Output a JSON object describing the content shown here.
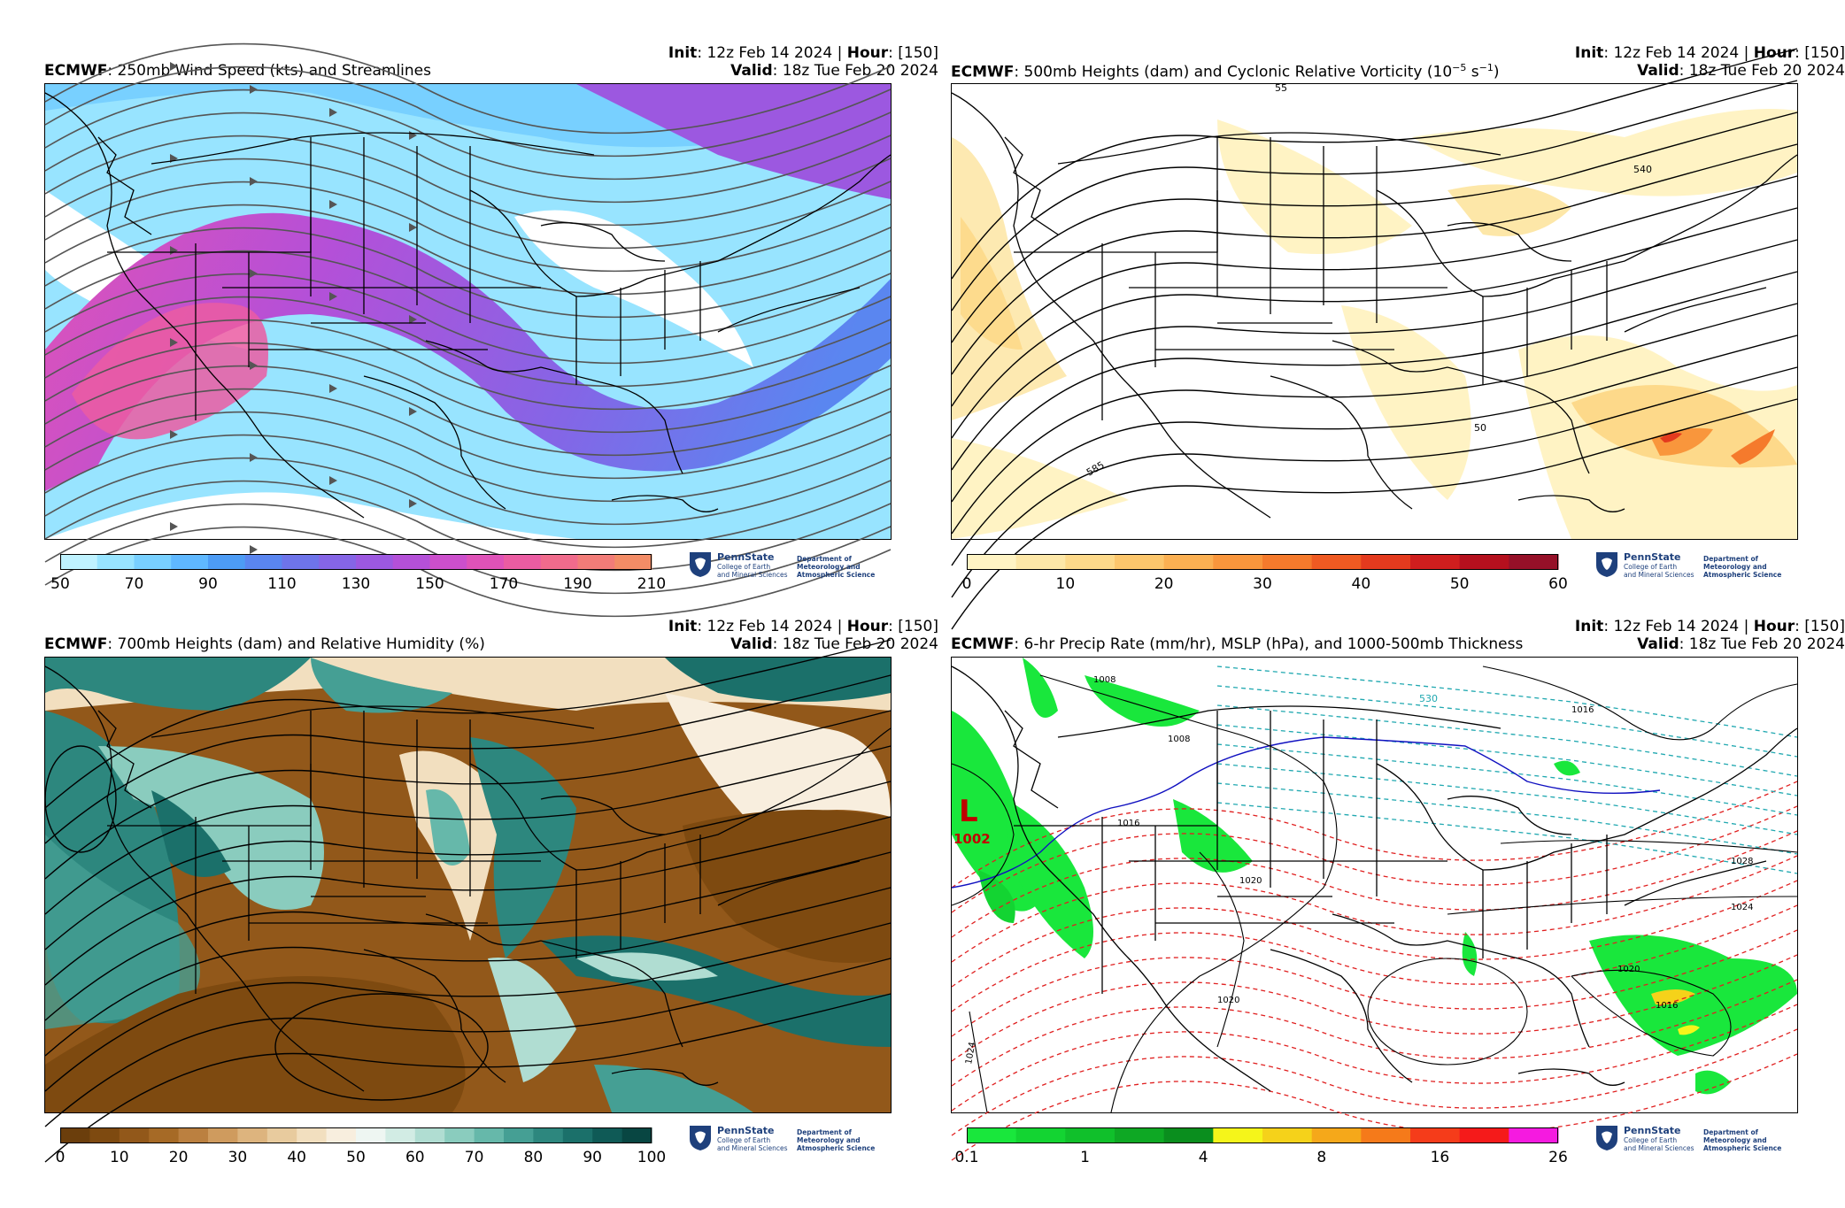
{
  "panels": [
    {
      "id": "p1",
      "model": "ECMWF",
      "title_rest": ": 250mb Wind Speed (kts) and Streamlines",
      "init_label": "Init",
      "init_value": ": 12z Feb 14 2024 | ",
      "hour_label": "Hour",
      "hour_value": ": [150]",
      "valid_label": "Valid",
      "valid_value": ": 18z Tue Feb 20 2024",
      "colorbar_ticks": [
        "50",
        "70",
        "90",
        "110",
        "130",
        "150",
        "170",
        "190",
        "210"
      ],
      "colorbar_colors": [
        "#bff2ff",
        "#98e4ff",
        "#78d0ff",
        "#5fb8ff",
        "#4d9cf5",
        "#5a86f0",
        "#6e74ea",
        "#8565e6",
        "#9c58e0",
        "#b450d8",
        "#cc4fcc",
        "#df52b8",
        "#eb5ca2",
        "#f06b8c",
        "#f27c78",
        "#f38c66"
      ]
    },
    {
      "id": "p2",
      "model": "ECMWF",
      "title_rest": ": 500mb Heights (dam) and Cyclonic Relative Vorticity (10",
      "title_sup": "−5",
      "title_tail": " s",
      "title_sup2": "−1",
      "title_end": ")",
      "init_label": "Init",
      "init_value": ": 12z Feb 14 2024 | ",
      "hour_label": "Hour",
      "hour_value": ": [150]",
      "valid_label": "Valid",
      "valid_value": ": 18z Tue Feb 20 2024",
      "colorbar_ticks": [
        "0",
        "10",
        "20",
        "30",
        "40",
        "50",
        "60"
      ],
      "colorbar_colors": [
        "#fff3c4",
        "#fde7a8",
        "#fdd98a",
        "#fcc66c",
        "#fbb052",
        "#f9963c",
        "#f57a2c",
        "#ef5a22",
        "#e43a1e",
        "#cf1e1e",
        "#b5101e",
        "#961028"
      ],
      "contour_labels": [
        "540",
        "585",
        "55",
        "50"
      ]
    },
    {
      "id": "p3",
      "model": "ECMWF",
      "title_rest": ": 700mb Heights (dam) and Relative Humidity (%)",
      "init_label": "Init",
      "init_value": ": 12z Feb 14 2024 | ",
      "hour_label": "Hour",
      "hour_value": ": [150]",
      "valid_label": "Valid",
      "valid_value": ": 18z Tue Feb 20 2024",
      "colorbar_ticks": [
        "0",
        "10",
        "20",
        "30",
        "40",
        "50",
        "60",
        "70",
        "80",
        "90",
        "100"
      ],
      "colorbar_colors": [
        "#6b3e0c",
        "#7e4a10",
        "#92581a",
        "#a66a26",
        "#bb8040",
        "#cf9b5e",
        "#ddb47e",
        "#e8cb9e",
        "#f2dfbf",
        "#f8eede",
        "#eef6f2",
        "#d2ece4",
        "#b0ddd2",
        "#8accbe",
        "#66b8aa",
        "#459f94",
        "#2d877e",
        "#1b706a",
        "#0f5a56",
        "#084642"
      ]
    },
    {
      "id": "p4",
      "model": "ECMWF",
      "title_rest": ": 6-hr Precip Rate (mm/hr), MSLP (hPa), and 1000-500mb Thickness",
      "init_label": "Init",
      "init_value": ": 12z Feb 14 2024 | ",
      "hour_label": "Hour",
      "hour_value": ": [150]",
      "valid_label": "Valid",
      "valid_value": ": 18z Tue Feb 20 2024",
      "colorbar_ticks": [
        "0.1",
        "1",
        "4",
        "8",
        "16",
        "26"
      ],
      "colorbar_colors": [
        "#19e73c",
        "#13d432",
        "#10c02b",
        "#0ea824",
        "#0a8e1e",
        "#f5f51a",
        "#f5d21a",
        "#f5a81a",
        "#f57a1a",
        "#f53c1a",
        "#f51a1a",
        "#f51ae0"
      ],
      "low_letter": "L",
      "low_value": "1002",
      "isobar_labels": [
        "1008",
        "1008",
        "1016",
        "1016",
        "1020",
        "1020",
        "1024",
        "1028",
        "1020",
        "1016",
        "1024",
        "530"
      ]
    }
  ],
  "logo": {
    "brand": "PennState",
    "college1": "College of Earth",
    "college2": "and Mineral Sciences",
    "dept1": "Department of",
    "dept2": "Meteorology and",
    "dept3": "Atmospheric Science"
  },
  "colors": {
    "streamline": "#555555",
    "isobar": "#000000",
    "thickness_warm": "#e02020",
    "thickness_cold": "#20a8b0",
    "freezing_line": "#1010c0"
  }
}
